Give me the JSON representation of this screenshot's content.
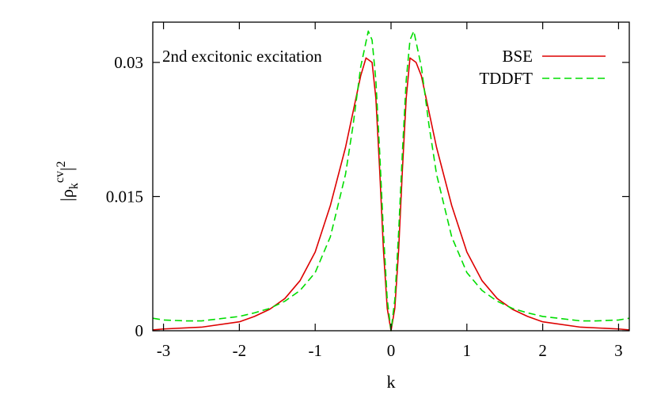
{
  "chart_data": {
    "type": "line",
    "title": "",
    "annotation": "2nd excitonic excitation",
    "xlabel": "k",
    "ylabel": {
      "base": "|ρ",
      "sub": "k",
      "sup": "cv",
      "tail": "|",
      "power": "2"
    },
    "xlim": [
      -3.14159,
      3.14159
    ],
    "ylim": [
      0,
      0.0345
    ],
    "xticks": [
      -3,
      -2,
      -1,
      0,
      1,
      2,
      3
    ],
    "xtick_labels": [
      "-3",
      "-2",
      "-1",
      "0",
      "1",
      "2",
      "3"
    ],
    "yticks": [
      0,
      0.015,
      0.03
    ],
    "ytick_labels": [
      "0",
      "0.015",
      "0.03"
    ],
    "grid": false,
    "legend_position": "top-right",
    "series": [
      {
        "name": "BSE",
        "color": "#dd0000",
        "dash": "solid",
        "x": [
          -3.14,
          -3.0,
          -2.5,
          -2.0,
          -1.8,
          -1.6,
          -1.4,
          -1.2,
          -1.0,
          -0.8,
          -0.6,
          -0.5,
          -0.4,
          -0.33,
          -0.25,
          -0.2,
          -0.15,
          -0.1,
          -0.05,
          0.0,
          0.05,
          0.1,
          0.15,
          0.2,
          0.25,
          0.33,
          0.4,
          0.5,
          0.6,
          0.8,
          1.0,
          1.2,
          1.4,
          1.6,
          1.8,
          2.0,
          2.5,
          3.0,
          3.14
        ],
        "y": [
          0.0001,
          0.0002,
          0.0004,
          0.001,
          0.0016,
          0.0024,
          0.0036,
          0.0056,
          0.0088,
          0.014,
          0.0205,
          0.0245,
          0.0285,
          0.0305,
          0.03,
          0.026,
          0.018,
          0.009,
          0.0025,
          0.0,
          0.0025,
          0.009,
          0.018,
          0.026,
          0.0305,
          0.03,
          0.0285,
          0.0245,
          0.0205,
          0.014,
          0.0088,
          0.0056,
          0.0036,
          0.0024,
          0.0016,
          0.001,
          0.0004,
          0.0002,
          0.0001
        ]
      },
      {
        "name": "TDDFT",
        "color": "#00dd00",
        "dash": "dashed",
        "x": [
          -3.14,
          -3.0,
          -2.7,
          -2.5,
          -2.0,
          -1.8,
          -1.6,
          -1.4,
          -1.2,
          -1.0,
          -0.8,
          -0.6,
          -0.5,
          -0.4,
          -0.3,
          -0.25,
          -0.2,
          -0.15,
          -0.1,
          -0.05,
          0.0,
          0.05,
          0.1,
          0.15,
          0.2,
          0.25,
          0.3,
          0.4,
          0.5,
          0.6,
          0.8,
          1.0,
          1.2,
          1.4,
          1.6,
          1.8,
          2.0,
          2.5,
          2.7,
          3.0,
          3.14
        ],
        "y": [
          0.0014,
          0.0012,
          0.0011,
          0.0011,
          0.0016,
          0.002,
          0.0025,
          0.0033,
          0.0045,
          0.0065,
          0.0105,
          0.0175,
          0.023,
          0.0295,
          0.0335,
          0.0325,
          0.028,
          0.02,
          0.011,
          0.0035,
          0.0,
          0.0035,
          0.011,
          0.02,
          0.028,
          0.0325,
          0.0335,
          0.0295,
          0.023,
          0.0175,
          0.0105,
          0.0065,
          0.0045,
          0.0033,
          0.0025,
          0.002,
          0.0016,
          0.0011,
          0.0011,
          0.0012,
          0.0014
        ]
      }
    ]
  }
}
